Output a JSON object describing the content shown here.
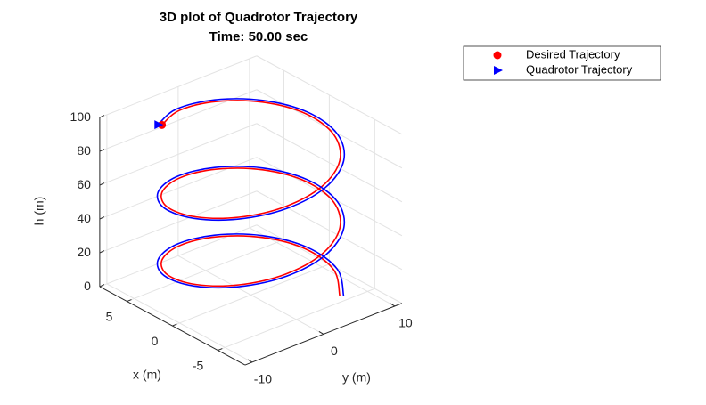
{
  "chart_data": {
    "type": "line3d",
    "title": "3D plot of Quadrotor Trajectory",
    "subtitle": "Time: 50.00 sec",
    "xlabel": "x (m)",
    "ylabel": "y (m)",
    "zlabel": "h (m)",
    "xlim": [
      -8,
      8
    ],
    "ylim": [
      -11,
      11
    ],
    "zlim": [
      0,
      100
    ],
    "xticks": [
      -5,
      0,
      5
    ],
    "yticks": [
      -10,
      0,
      10
    ],
    "zticks": [
      0,
      20,
      40,
      60,
      80,
      100
    ],
    "grid": true,
    "legend": "northeastoutside",
    "series": [
      {
        "name": "Desired Trajectory",
        "color": "#ff0000",
        "marker": "circle",
        "x": [
          4.24,
          5.8,
          5.8,
          4.24,
          1.55,
          -1.55,
          -4.24,
          -5.8,
          -5.8,
          -4.24,
          -1.55,
          1.55,
          4.24,
          5.8,
          5.8,
          4.24,
          1.55,
          -1.55,
          -4.24,
          -5.8,
          -5.8,
          -4.24,
          -1.55,
          1.55,
          4.24,
          5.8,
          5.8,
          4.24,
          1.55,
          -1.55,
          -4.24
        ],
        "y": [
          -7.07,
          -2.59,
          2.59,
          7.07,
          9.66,
          9.66,
          7.07,
          2.59,
          -2.59,
          -7.07,
          -9.66,
          -9.66,
          -7.07,
          -2.59,
          2.59,
          7.07,
          9.66,
          9.66,
          7.07,
          2.59,
          -2.59,
          -7.07,
          -9.66,
          -9.66,
          -7.07,
          -2.59,
          2.59,
          7.07,
          9.66,
          9.66,
          7.07
        ],
        "z": [
          100,
          96.7,
          93.3,
          90,
          86.7,
          83.3,
          80,
          76.7,
          73.3,
          70,
          66.7,
          63.3,
          60,
          56.7,
          53.3,
          50,
          46.7,
          43.3,
          40,
          36.7,
          33.3,
          30,
          26.7,
          23.3,
          20,
          16.7,
          13.3,
          10,
          6.7,
          3.3,
          0
        ]
      },
      {
        "name": "Quadrotor Trajectory",
        "color": "#0000ff",
        "marker": "triangle",
        "x": [
          4.45,
          6.09,
          6.09,
          4.45,
          1.63,
          -1.63,
          -4.45,
          -6.09,
          -6.09,
          -4.45,
          -1.63,
          1.63,
          4.45,
          6.09,
          6.09,
          4.45,
          1.63,
          -1.63,
          -4.45,
          -6.09,
          -6.09,
          -4.45,
          -1.63,
          1.63,
          4.45,
          6.09,
          6.09,
          4.45,
          1.63,
          -1.63,
          -4.45
        ],
        "y": [
          -7.35,
          -2.69,
          2.69,
          7.35,
          10.05,
          10.05,
          7.35,
          2.69,
          -2.69,
          -7.35,
          -10.05,
          -10.05,
          -7.35,
          -2.69,
          2.69,
          7.35,
          10.05,
          10.05,
          7.35,
          2.69,
          -2.69,
          -7.35,
          -10.05,
          -10.05,
          -7.35,
          -2.69,
          2.69,
          7.35,
          10.05,
          10.05,
          7.35
        ],
        "z": [
          100,
          96.7,
          93.3,
          90,
          86.7,
          83.3,
          80,
          76.7,
          73.3,
          70,
          66.7,
          63.3,
          60,
          56.7,
          53.3,
          50,
          46.7,
          43.3,
          40,
          36.7,
          33.3,
          30,
          26.7,
          23.3,
          20,
          16.7,
          13.3,
          10,
          6.7,
          3.3,
          0
        ]
      }
    ]
  }
}
